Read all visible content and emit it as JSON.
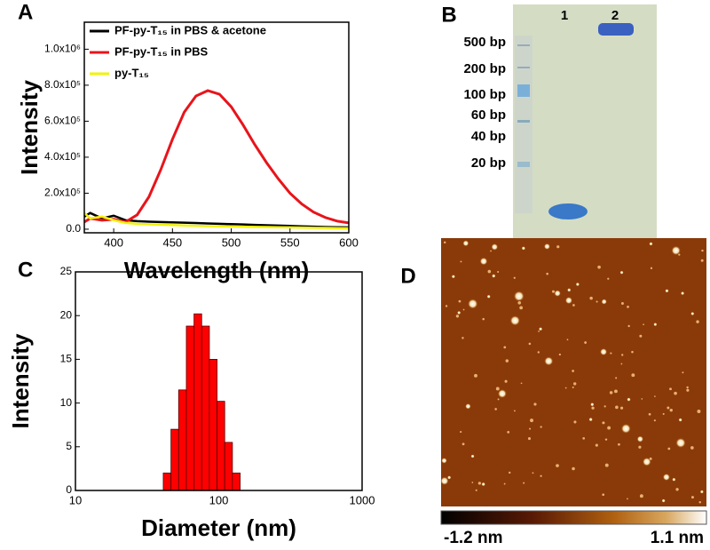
{
  "chart_data": [
    {
      "type": "line",
      "label": "A",
      "ylabel": "Intensity",
      "xlabel": "Wavelength (nm)",
      "x": [
        375,
        380,
        390,
        400,
        410,
        420,
        430,
        440,
        450,
        460,
        470,
        480,
        490,
        500,
        510,
        520,
        530,
        540,
        550,
        560,
        570,
        580,
        590,
        600
      ],
      "series": [
        {
          "name": "PF-py-T₁₅ in PBS & acetone",
          "color": "#000000",
          "values": [
            70000,
            90000,
            60000,
            75000,
            50000,
            45000,
            42000,
            40000,
            38000,
            36000,
            34000,
            32000,
            30000,
            28000,
            26000,
            24000,
            22000,
            20000,
            18000,
            16000,
            14000,
            12000,
            11000,
            10000
          ]
        },
        {
          "name": "PF-py-T₁₅ in PBS",
          "color": "#e8141b",
          "values": [
            40000,
            60000,
            50000,
            55000,
            40000,
            80000,
            180000,
            330000,
            500000,
            650000,
            740000,
            770000,
            750000,
            680000,
            580000,
            470000,
            370000,
            280000,
            200000,
            140000,
            95000,
            65000,
            45000,
            35000
          ]
        },
        {
          "name": "py-T₁₅",
          "color": "#f2f20a",
          "values": [
            90000,
            60000,
            70000,
            50000,
            35000,
            30000,
            27000,
            25000,
            23000,
            21000,
            19000,
            17000,
            16000,
            15000,
            14000,
            13000,
            12000,
            11000,
            10000,
            9000,
            8000,
            7000,
            6000,
            5000
          ]
        }
      ],
      "xlim": [
        375,
        600
      ],
      "xticks": [
        400,
        450,
        500,
        550,
        600
      ],
      "ylim": [
        -20000,
        1150000
      ],
      "yticks": [
        {
          "value": 0,
          "label": "0.0"
        },
        {
          "value": 200000,
          "label": "2.0x10⁵"
        },
        {
          "value": 400000,
          "label": "4.0x10⁵"
        },
        {
          "value": 600000,
          "label": "6.0x10⁵"
        },
        {
          "value": 800000,
          "label": "8.0x10⁵"
        },
        {
          "value": 1000000,
          "label": "1.0x10⁶"
        }
      ],
      "legend": "upper left"
    },
    {
      "type": "histogram",
      "label": "C",
      "ylabel": "Intensity",
      "xlabel": "Diameter (nm)",
      "bins": [
        41,
        46.4,
        52.5,
        59.4,
        67.2,
        76,
        86,
        97.3,
        110,
        124.5,
        141
      ],
      "values": [
        2,
        7,
        11.5,
        18.8,
        20.2,
        18.8,
        15,
        10.2,
        5.5,
        2
      ],
      "color": "#ff0000",
      "xscale": "log",
      "xlim": [
        10,
        1000
      ],
      "xticks": [
        10,
        100,
        1000
      ],
      "ylim": [
        0,
        25
      ],
      "yticks": [
        0,
        5,
        10,
        15,
        20,
        25
      ]
    }
  ],
  "gel": {
    "label": "B",
    "lanes": [
      "1",
      "2"
    ],
    "ladder": [
      "500 bp",
      "200 bp",
      "100 bp",
      "60 bp",
      "40 bp",
      "20 bp"
    ]
  },
  "afm": {
    "label": "D",
    "scale_min": "-1.2 nm",
    "scale_max": "1.1 nm"
  }
}
